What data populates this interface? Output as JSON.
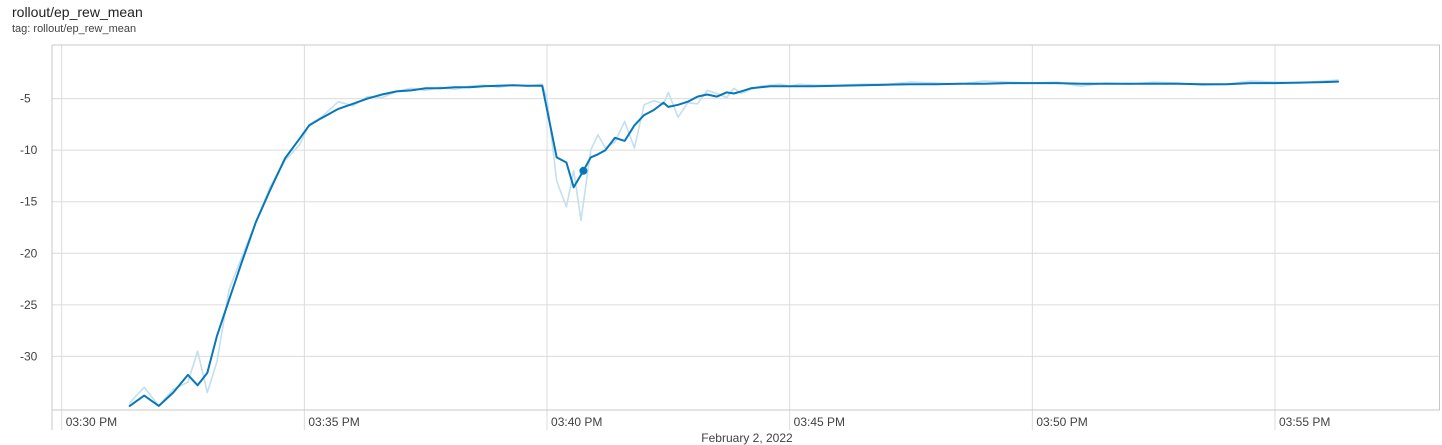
{
  "header": {
    "title": "rollout/ep_rew_mean",
    "tag": "tag: rollout/ep_rew_mean"
  },
  "chart_data": {
    "type": "line",
    "xlabel": "February 2, 2022",
    "ylabel": "",
    "x_tick_labels": [
      "03:30 PM",
      "03:35 PM",
      "03:40 PM",
      "03:45 PM",
      "03:50 PM",
      "03:55 PM"
    ],
    "y_ticks": [
      -30,
      -25,
      -20,
      -15,
      -10,
      -5
    ],
    "xlim": [
      -0.2,
      28.4
    ],
    "ylim": [
      -35.2,
      0.2
    ],
    "grid": true,
    "colors": {
      "smoothed": "#0877b8",
      "raw": "#c3dff0",
      "grid": "#dcdcdc",
      "axis": "#c8c8c8"
    },
    "highlight_point": {
      "x": 10.75,
      "y": -12.0
    },
    "series": [
      {
        "role": "raw",
        "x": [
          1.4,
          1.7,
          2.0,
          2.3,
          2.6,
          2.8,
          3.0,
          3.2,
          3.45,
          3.7,
          4.0,
          4.3,
          4.6,
          4.9,
          5.1,
          5.35,
          5.7,
          6.0,
          6.3,
          6.6,
          6.9,
          7.2,
          7.5,
          7.8,
          8.1,
          8.4,
          8.7,
          9.0,
          9.3,
          9.6,
          9.9,
          10.0,
          10.2,
          10.4,
          10.55,
          10.7,
          10.9,
          11.05,
          11.2,
          11.4,
          11.6,
          11.8,
          12.0,
          12.2,
          12.4,
          12.5,
          12.7,
          12.9,
          13.1,
          13.3,
          13.5,
          13.7,
          13.85,
          14.0,
          14.2,
          14.4,
          14.6,
          14.8,
          15.0,
          15.2,
          15.5,
          16.0,
          16.5,
          17.0,
          17.5,
          18.0,
          18.5,
          19.0,
          19.5,
          20.0,
          20.5,
          21.0,
          21.5,
          22.0,
          22.5,
          23.0,
          23.5,
          24.0,
          24.5,
          25.0,
          25.5,
          26.0,
          26.3
        ],
        "y": [
          -34.5,
          -33.0,
          -34.8,
          -33.2,
          -32.5,
          -29.5,
          -33.5,
          -30.5,
          -23.5,
          -20.5,
          -17.0,
          -13.5,
          -11.0,
          -9.5,
          -7.5,
          -6.8,
          -5.3,
          -5.7,
          -4.8,
          -4.9,
          -4.3,
          -4.0,
          -4.2,
          -3.9,
          -4.1,
          -3.8,
          -3.7,
          -3.9,
          -3.7,
          -3.8,
          -3.6,
          -5.0,
          -13.0,
          -15.5,
          -12.0,
          -16.8,
          -10.0,
          -8.5,
          -9.8,
          -9.2,
          -7.2,
          -9.8,
          -5.6,
          -5.2,
          -5.5,
          -4.4,
          -6.8,
          -5.4,
          -5.5,
          -4.2,
          -4.5,
          -4.9,
          -4.0,
          -4.5,
          -4.1,
          -3.8,
          -3.7,
          -3.6,
          -3.8,
          -3.6,
          -3.7,
          -3.7,
          -3.6,
          -3.6,
          -3.4,
          -3.5,
          -3.6,
          -3.3,
          -3.4,
          -3.5,
          -3.4,
          -3.8,
          -3.5,
          -3.6,
          -3.4,
          -3.5,
          -3.7,
          -3.6,
          -3.3,
          -3.4,
          -3.5,
          -3.3,
          -3.2
        ]
      },
      {
        "role": "smoothed",
        "x": [
          1.4,
          1.7,
          2.0,
          2.3,
          2.6,
          2.8,
          3.0,
          3.2,
          3.45,
          3.7,
          4.0,
          4.3,
          4.6,
          4.9,
          5.1,
          5.35,
          5.7,
          6.0,
          6.3,
          6.6,
          6.9,
          7.2,
          7.5,
          7.8,
          8.1,
          8.4,
          8.7,
          9.0,
          9.3,
          9.6,
          9.9,
          10.2,
          10.4,
          10.55,
          10.75,
          10.9,
          11.05,
          11.2,
          11.4,
          11.6,
          11.8,
          12.0,
          12.2,
          12.4,
          12.5,
          12.7,
          12.9,
          13.1,
          13.3,
          13.5,
          13.7,
          13.85,
          14.0,
          14.2,
          14.4,
          14.6,
          14.8,
          15.0,
          15.2,
          15.5,
          16.0,
          16.5,
          17.0,
          17.5,
          18.0,
          18.5,
          19.0,
          19.5,
          20.0,
          20.5,
          21.0,
          21.5,
          22.0,
          22.5,
          23.0,
          23.5,
          24.0,
          24.5,
          25.0,
          25.5,
          26.0,
          26.3
        ],
        "y": [
          -34.8,
          -33.8,
          -34.8,
          -33.5,
          -31.8,
          -32.8,
          -31.6,
          -28.0,
          -24.5,
          -21.0,
          -17.0,
          -13.8,
          -10.8,
          -8.9,
          -7.6,
          -6.9,
          -6.0,
          -5.5,
          -5.0,
          -4.6,
          -4.3,
          -4.2,
          -4.0,
          -4.0,
          -3.9,
          -3.9,
          -3.8,
          -3.75,
          -3.7,
          -3.75,
          -3.75,
          -10.7,
          -11.2,
          -13.6,
          -12.0,
          -10.7,
          -10.4,
          -10.0,
          -8.8,
          -9.1,
          -7.6,
          -6.6,
          -6.1,
          -5.4,
          -5.8,
          -5.6,
          -5.3,
          -4.8,
          -4.6,
          -4.8,
          -4.4,
          -4.5,
          -4.3,
          -4.0,
          -3.9,
          -3.8,
          -3.8,
          -3.8,
          -3.8,
          -3.8,
          -3.75,
          -3.7,
          -3.65,
          -3.6,
          -3.6,
          -3.55,
          -3.55,
          -3.5,
          -3.5,
          -3.5,
          -3.55,
          -3.55,
          -3.55,
          -3.55,
          -3.55,
          -3.6,
          -3.6,
          -3.5,
          -3.5,
          -3.45,
          -3.4,
          -3.35
        ]
      }
    ]
  }
}
